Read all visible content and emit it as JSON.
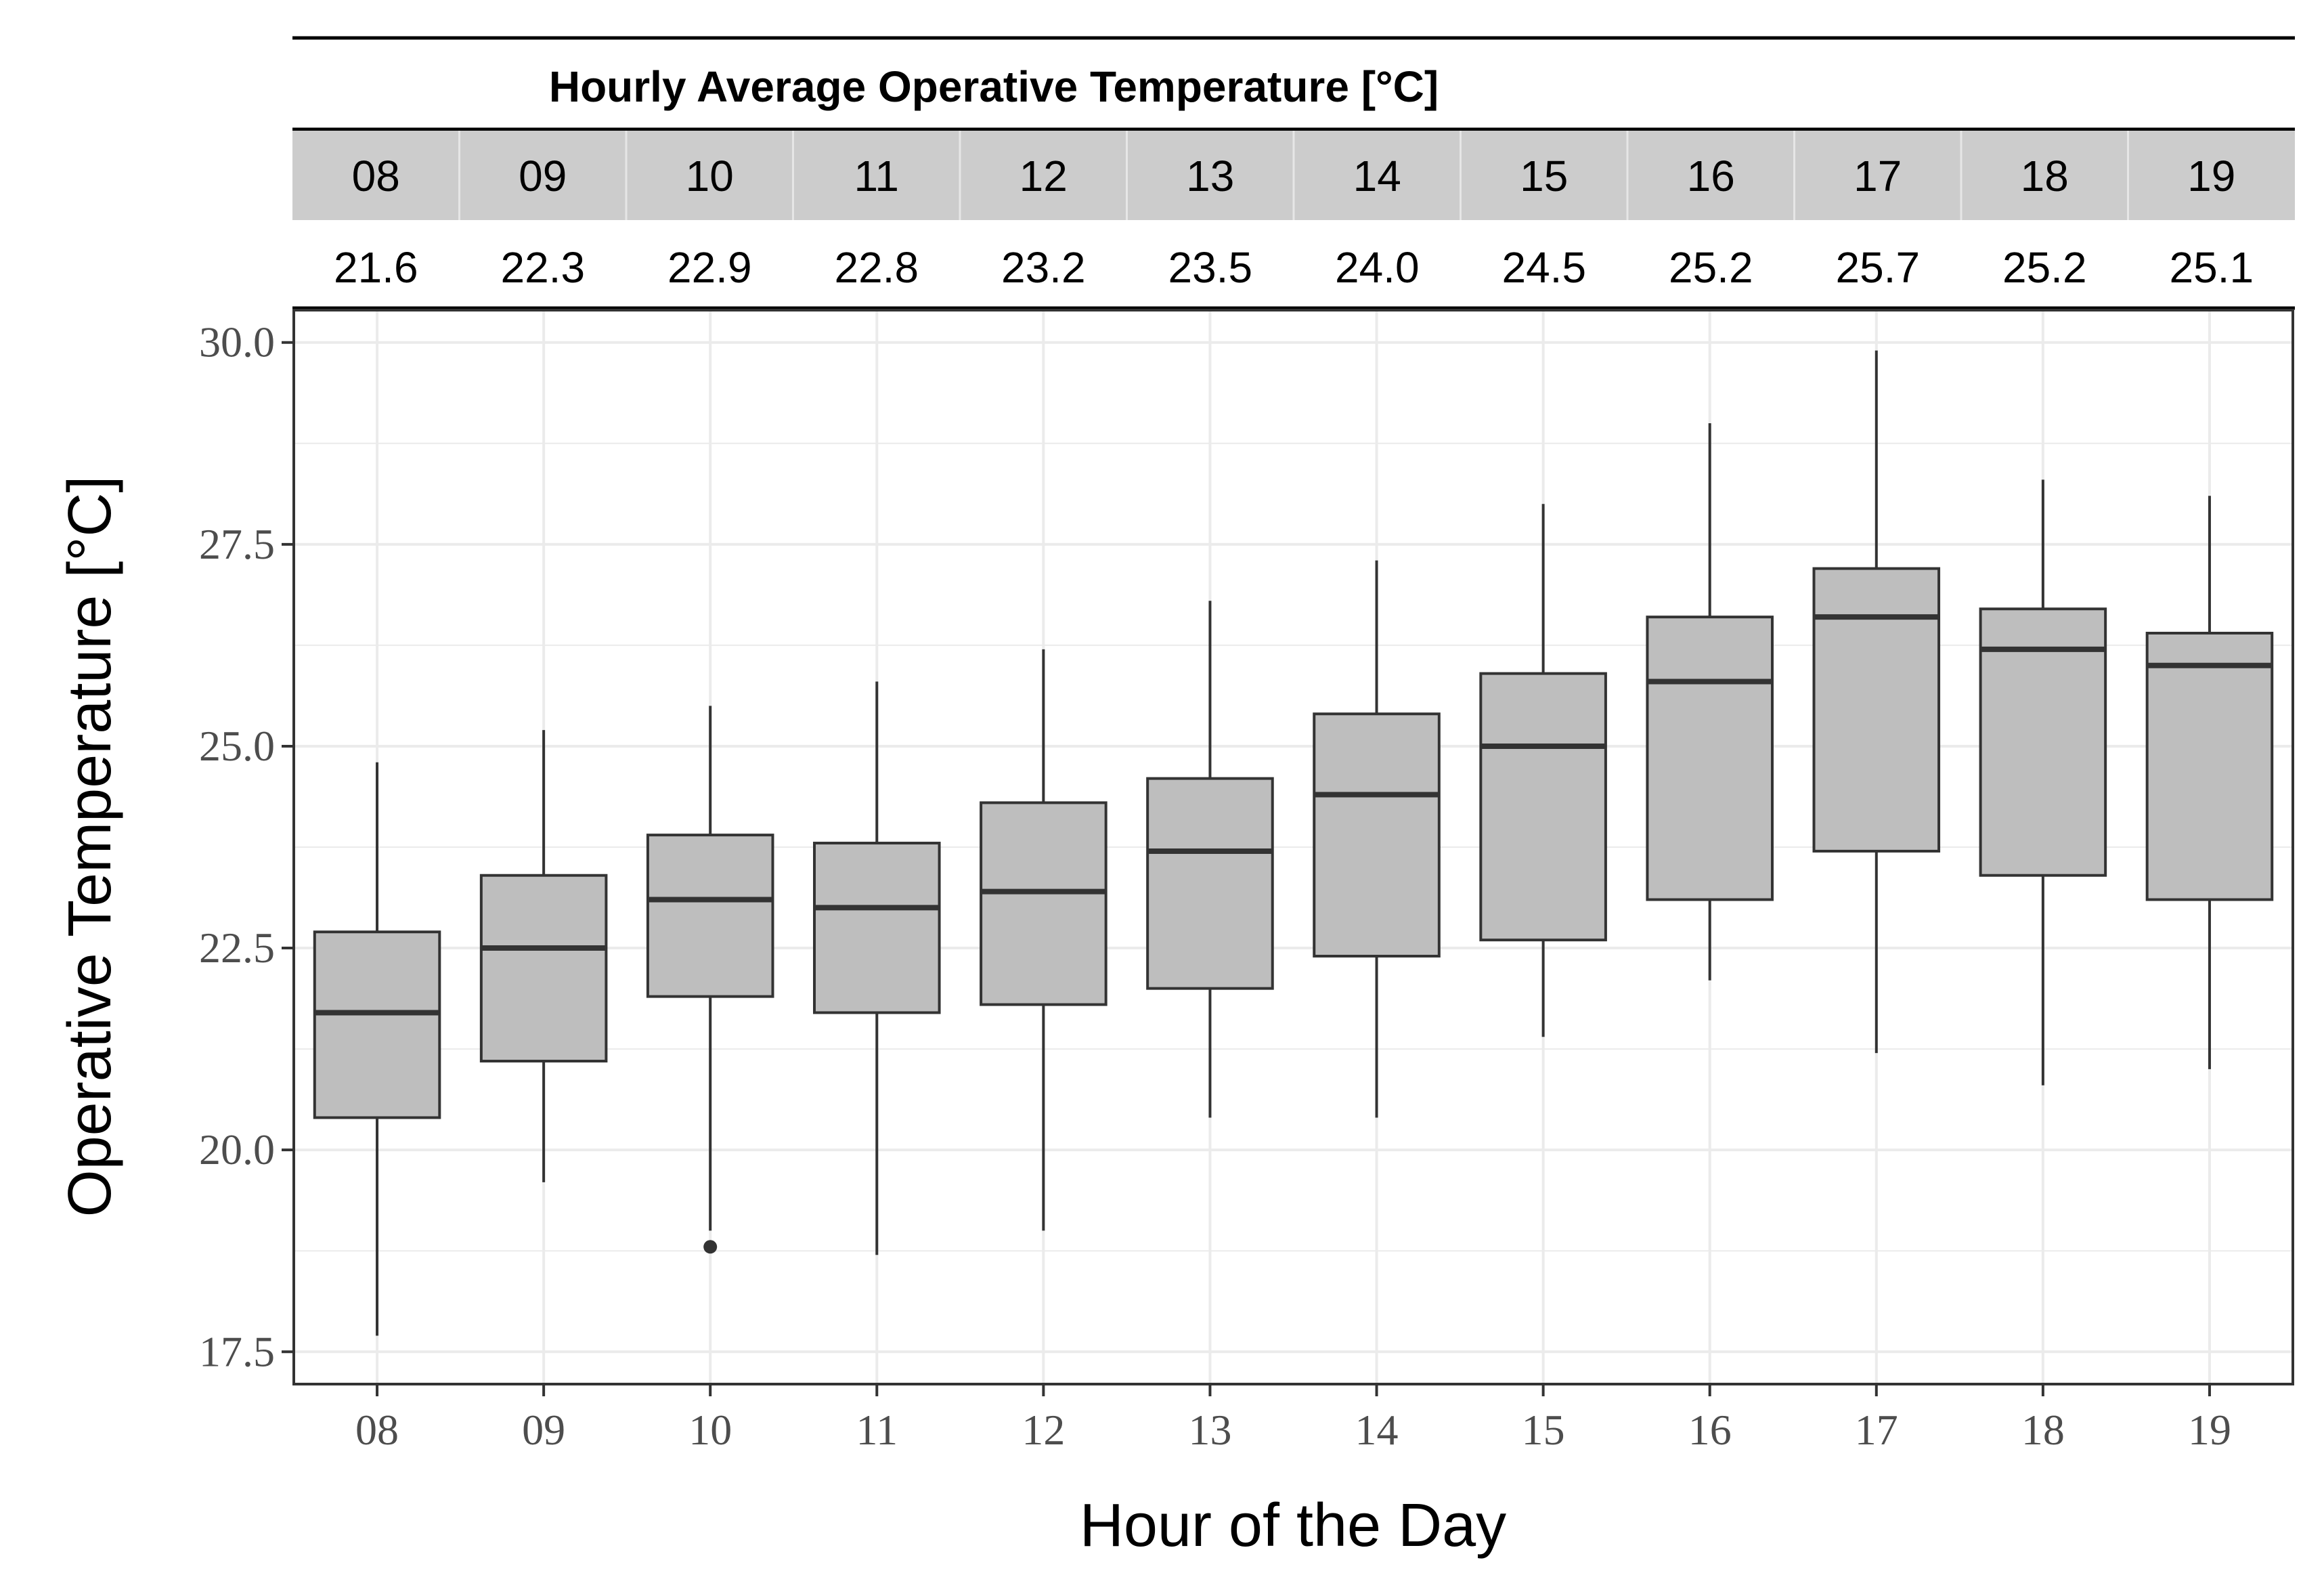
{
  "chart_data": {
    "type": "boxplot",
    "title": "Hourly Average Operative Temperature [°C]",
    "xlabel": "Hour of the Day",
    "ylabel": "Operative Temperature [°C]",
    "ylim": [
      17.1,
      30.4
    ],
    "yticks": [
      17.5,
      20.0,
      22.5,
      25.0,
      27.5,
      30.0
    ],
    "ytick_labels": [
      "17.5",
      "20.0",
      "22.5",
      "25.0",
      "27.5",
      "30.0"
    ],
    "grid": true,
    "categories": [
      "08",
      "09",
      "10",
      "11",
      "12",
      "13",
      "14",
      "15",
      "16",
      "17",
      "18",
      "19"
    ],
    "hourly_average": [
      "21.6",
      "22.3",
      "22.9",
      "22.8",
      "23.2",
      "23.5",
      "24.0",
      "24.5",
      "25.2",
      "25.7",
      "25.2",
      "25.1"
    ],
    "boxes": [
      {
        "hour": "08",
        "min": 17.7,
        "q1": 20.4,
        "median": 21.7,
        "q3": 22.7,
        "max": 24.8,
        "outliers": []
      },
      {
        "hour": "09",
        "min": 19.6,
        "q1": 21.1,
        "median": 22.5,
        "q3": 23.4,
        "max": 25.2,
        "outliers": []
      },
      {
        "hour": "10",
        "min": 19.0,
        "q1": 21.9,
        "median": 23.1,
        "q3": 23.9,
        "max": 25.5,
        "outliers": [
          18.8
        ]
      },
      {
        "hour": "11",
        "min": 18.7,
        "q1": 21.7,
        "median": 23.0,
        "q3": 23.8,
        "max": 25.8,
        "outliers": []
      },
      {
        "hour": "12",
        "min": 19.0,
        "q1": 21.8,
        "median": 23.2,
        "q3": 24.3,
        "max": 26.2,
        "outliers": []
      },
      {
        "hour": "13",
        "min": 20.4,
        "q1": 22.0,
        "median": 23.7,
        "q3": 24.6,
        "max": 26.8,
        "outliers": []
      },
      {
        "hour": "14",
        "min": 20.4,
        "q1": 22.4,
        "median": 24.4,
        "q3": 25.4,
        "max": 27.3,
        "outliers": []
      },
      {
        "hour": "15",
        "min": 21.4,
        "q1": 22.6,
        "median": 25.0,
        "q3": 25.9,
        "max": 28.0,
        "outliers": []
      },
      {
        "hour": "16",
        "min": 22.1,
        "q1": 23.1,
        "median": 25.8,
        "q3": 26.6,
        "max": 29.0,
        "outliers": []
      },
      {
        "hour": "17",
        "min": 21.2,
        "q1": 23.7,
        "median": 26.6,
        "q3": 27.2,
        "max": 29.9,
        "outliers": []
      },
      {
        "hour": "18",
        "min": 20.8,
        "q1": 23.4,
        "median": 26.2,
        "q3": 26.7,
        "max": 28.3,
        "outliers": []
      },
      {
        "hour": "19",
        "min": 21.0,
        "q1": 23.1,
        "median": 26.0,
        "q3": 26.4,
        "max": 28.1,
        "outliers": []
      }
    ],
    "colors": {
      "box_fill": "#bebebe",
      "box_stroke": "#333333",
      "median": "#333333",
      "grid": "#ebebeb",
      "header_band": "#cccccc",
      "header_divider": "#e6e6e6"
    }
  }
}
